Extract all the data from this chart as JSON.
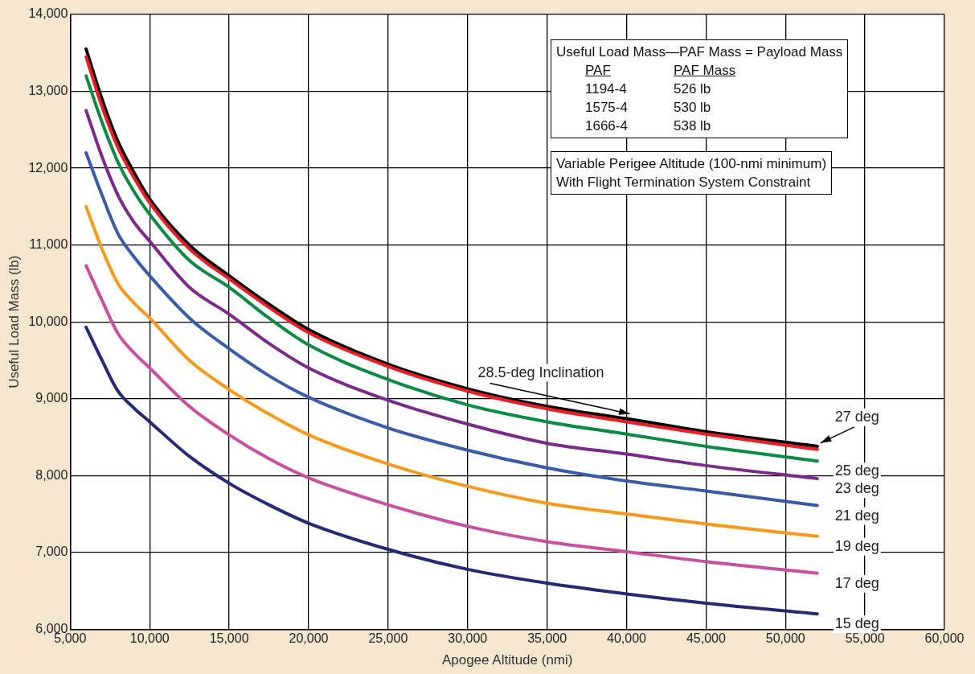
{
  "chart_data": {
    "type": "line",
    "xlabel": "Apogee Altitude (nmi)",
    "ylabel": "Useful Load Mass (lb)",
    "x": [
      6000,
      7000,
      8000,
      9000,
      10000,
      12500,
      15000,
      17500,
      20000,
      25000,
      30000,
      35000,
      40000,
      45000,
      52000
    ],
    "xlim": [
      5000,
      60000
    ],
    "xticks": [
      {
        "value": 5000,
        "label": "5,000"
      },
      {
        "value": 10000,
        "label": "10,000"
      },
      {
        "value": 15000,
        "label": "15,000"
      },
      {
        "value": 20000,
        "label": "20,000"
      },
      {
        "value": 25000,
        "label": "25,000"
      },
      {
        "value": 30000,
        "label": "30,000"
      },
      {
        "value": 35000,
        "label": "35,000"
      },
      {
        "value": 40000,
        "label": "40,000"
      },
      {
        "value": 45000,
        "label": "45,000"
      },
      {
        "value": 50000,
        "label": "50,000"
      },
      {
        "value": 55000,
        "label": "55,000"
      },
      {
        "value": 60000,
        "label": "60,000"
      }
    ],
    "ylim": [
      6000,
      14000
    ],
    "yticks": [
      {
        "value": 6000,
        "label": "6,000"
      },
      {
        "value": 7000,
        "label": "7,000"
      },
      {
        "value": 8000,
        "label": "8,000"
      },
      {
        "value": 9000,
        "label": "9,000"
      },
      {
        "value": 10000,
        "label": "10,000"
      },
      {
        "value": 11000,
        "label": "11,000"
      },
      {
        "value": 12000,
        "label": "12,000"
      },
      {
        "value": 13000,
        "label": "13,000"
      },
      {
        "value": 14000,
        "label": "14,000"
      }
    ],
    "grid": true,
    "legend": false,
    "marker": "none",
    "line_style": "solid",
    "series": [
      {
        "name": "28.5-deg Inclination",
        "color": "#000000",
        "values": [
          13550,
          12900,
          12350,
          11950,
          11600,
          11000,
          10600,
          10230,
          9900,
          9450,
          9130,
          8900,
          8740,
          8570,
          8380
        ]
      },
      {
        "name": "27 deg",
        "color": "#ee1c25",
        "values": [
          13450,
          12800,
          12270,
          11880,
          11550,
          10950,
          10560,
          10190,
          9860,
          9420,
          9100,
          8870,
          8700,
          8540,
          8340
        ]
      },
      {
        "name": "25 deg",
        "color": "#0a8a45",
        "values": [
          13200,
          12600,
          12080,
          11700,
          11400,
          10800,
          10450,
          10050,
          9700,
          9250,
          8920,
          8700,
          8540,
          8380,
          8190
        ]
      },
      {
        "name": "23 deg",
        "color": "#7b2a8a",
        "values": [
          12750,
          12150,
          11650,
          11300,
          11050,
          10450,
          10100,
          9720,
          9400,
          8980,
          8670,
          8420,
          8280,
          8130,
          7960
        ]
      },
      {
        "name": "21 deg",
        "color": "#3a5ba8",
        "values": [
          12200,
          11650,
          11150,
          10850,
          10600,
          10050,
          9650,
          9300,
          9020,
          8620,
          8330,
          8100,
          7930,
          7800,
          7610
        ]
      },
      {
        "name": "19 deg",
        "color": "#f7991c",
        "values": [
          11500,
          10950,
          10500,
          10250,
          10050,
          9500,
          9120,
          8800,
          8530,
          8150,
          7860,
          7640,
          7500,
          7370,
          7210
        ]
      },
      {
        "name": "17 deg",
        "color": "#c8509e",
        "values": [
          10730,
          10280,
          9850,
          9600,
          9400,
          8900,
          8530,
          8220,
          7970,
          7620,
          7340,
          7140,
          7010,
          6880,
          6730
        ]
      },
      {
        "name": "15 deg",
        "color": "#262a72",
        "values": [
          9930,
          9500,
          9100,
          8880,
          8700,
          8250,
          7900,
          7620,
          7380,
          7040,
          6780,
          6600,
          6460,
          6340,
          6200
        ]
      }
    ],
    "annotations": [
      "Useful Load Mass—PAF Mass = Payload Mass",
      "PAF",
      "PAF Mass",
      "1194-4",
      "526 lb",
      "1575-4",
      "530 lb",
      "1666-4",
      "538 lb",
      "Variable Perigee Altitude (100-nmi minimum)",
      "With Flight Termination System Constraint"
    ]
  }
}
